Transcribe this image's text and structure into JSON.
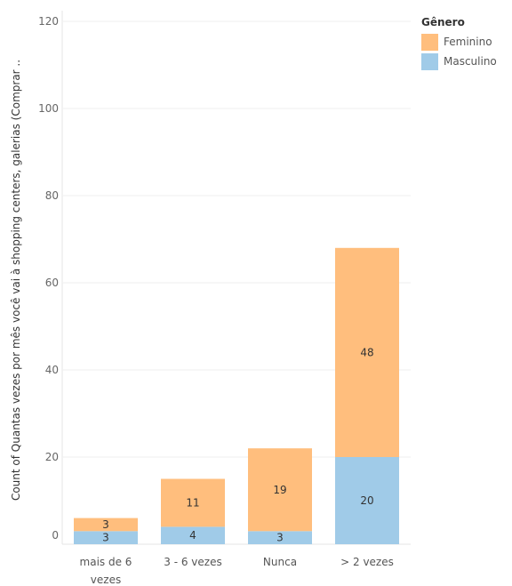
{
  "chart_data": {
    "type": "bar",
    "stacked": true,
    "categories": [
      "mais de 6 vezes",
      "3 - 6 vezes",
      "Nunca",
      "> 2 vezes"
    ],
    "category_lines": [
      [
        "mais de 6",
        "vezes"
      ],
      [
        "3 - 6 vezes"
      ],
      [
        "Nunca"
      ],
      [
        "> 2 vezes"
      ]
    ],
    "series": [
      {
        "name": "Masculino",
        "values": [
          3,
          4,
          3,
          20
        ],
        "color": "#a0cbe8"
      },
      {
        "name": "Feminino",
        "values": [
          3,
          11,
          19,
          48
        ],
        "color": "#ffbe7d"
      }
    ],
    "ylabel": "Count of Quantas vezes por mês você vai à shopping centers, galerias (Comprar ..",
    "ylim": [
      0,
      120
    ],
    "yticks": [
      0,
      20,
      40,
      60,
      80,
      100,
      120
    ],
    "grid": true,
    "legend": {
      "title": "Gênero",
      "placement": "right",
      "order": [
        "Feminino",
        "Masculino"
      ]
    }
  }
}
